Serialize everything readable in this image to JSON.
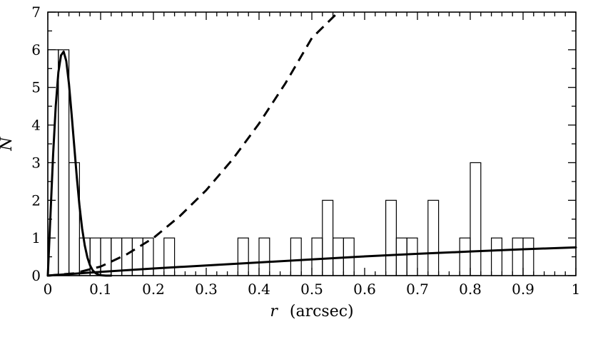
{
  "chart_data": {
    "type": "line",
    "title": "",
    "xlabel_var": "r",
    "xlabel_unit": "(arcsec)",
    "ylabel": "N",
    "xlim": [
      0,
      1
    ],
    "ylim": [
      0,
      7
    ],
    "x_ticks": [
      0,
      0.1,
      0.2,
      0.3,
      0.4,
      0.5,
      0.6,
      0.7,
      0.8,
      0.9,
      1
    ],
    "x_tick_labels": [
      "0",
      "0.1",
      "0.2",
      "0.3",
      "0.4",
      "0.5",
      "0.6",
      "0.7",
      "0.8",
      "0.9",
      "1"
    ],
    "y_ticks": [
      0,
      1,
      2,
      3,
      4,
      5,
      6,
      7
    ],
    "y_tick_labels": [
      "0",
      "1",
      "2",
      "3",
      "4",
      "5",
      "6",
      "7"
    ],
    "grid": false,
    "legend": "none",
    "histogram": {
      "bin_width": 0.02,
      "bin_starts": [
        0.0,
        0.02,
        0.04,
        0.06,
        0.08,
        0.1,
        0.12,
        0.14,
        0.16,
        0.18,
        0.2,
        0.22,
        0.24,
        0.26,
        0.28,
        0.3,
        0.32,
        0.34,
        0.36,
        0.38,
        0.4,
        0.42,
        0.44,
        0.46,
        0.48,
        0.5,
        0.52,
        0.54,
        0.56,
        0.58,
        0.6,
        0.62,
        0.64,
        0.66,
        0.68,
        0.7,
        0.72,
        0.74,
        0.76,
        0.78,
        0.8,
        0.82,
        0.84,
        0.86,
        0.88,
        0.9,
        0.92,
        0.94,
        0.96,
        0.98
      ],
      "counts": [
        6,
        6,
        3,
        1,
        1,
        1,
        1,
        1,
        1,
        1,
        0,
        1,
        0,
        0,
        0,
        0,
        0,
        0,
        1,
        0,
        1,
        0,
        0,
        1,
        0,
        1,
        2,
        1,
        1,
        0,
        0,
        0,
        2,
        1,
        1,
        0,
        2,
        0,
        0,
        1,
        3,
        0,
        1,
        0,
        1,
        1,
        0,
        0,
        0,
        0
      ]
    },
    "series": [
      {
        "style": "solid-thick",
        "x": [
          0,
          0.005,
          0.01,
          0.015,
          0.02,
          0.025,
          0.03,
          0.035,
          0.04,
          0.045,
          0.05,
          0.055,
          0.06,
          0.065,
          0.07,
          0.075,
          0.08,
          0.085,
          0.09,
          0.095,
          0.1,
          0.105,
          0.11,
          0.12
        ],
        "y": [
          0,
          1.6,
          3.2,
          4.5,
          5.4,
          5.85,
          5.95,
          5.7,
          5.1,
          4.3,
          3.45,
          2.6,
          1.85,
          1.25,
          0.8,
          0.48,
          0.27,
          0.14,
          0.07,
          0.03,
          0.01,
          0.005,
          0,
          0
        ]
      },
      {
        "style": "dashed",
        "x": [
          0,
          0.05,
          0.1,
          0.15,
          0.2,
          0.25,
          0.3,
          0.35,
          0.4,
          0.45,
          0.5,
          0.55
        ],
        "y": [
          0,
          0.06,
          0.24,
          0.57,
          1.0,
          1.58,
          2.27,
          3.09,
          4.04,
          5.11,
          6.31,
          7.0
        ]
      },
      {
        "style": "solid-thick",
        "x": [
          0,
          0.1,
          0.2,
          0.3,
          0.4,
          0.5,
          0.6,
          0.7,
          0.8,
          0.9,
          1
        ],
        "y": [
          0,
          0.1,
          0.19,
          0.27,
          0.35,
          0.43,
          0.51,
          0.58,
          0.64,
          0.7,
          0.75
        ]
      }
    ]
  }
}
